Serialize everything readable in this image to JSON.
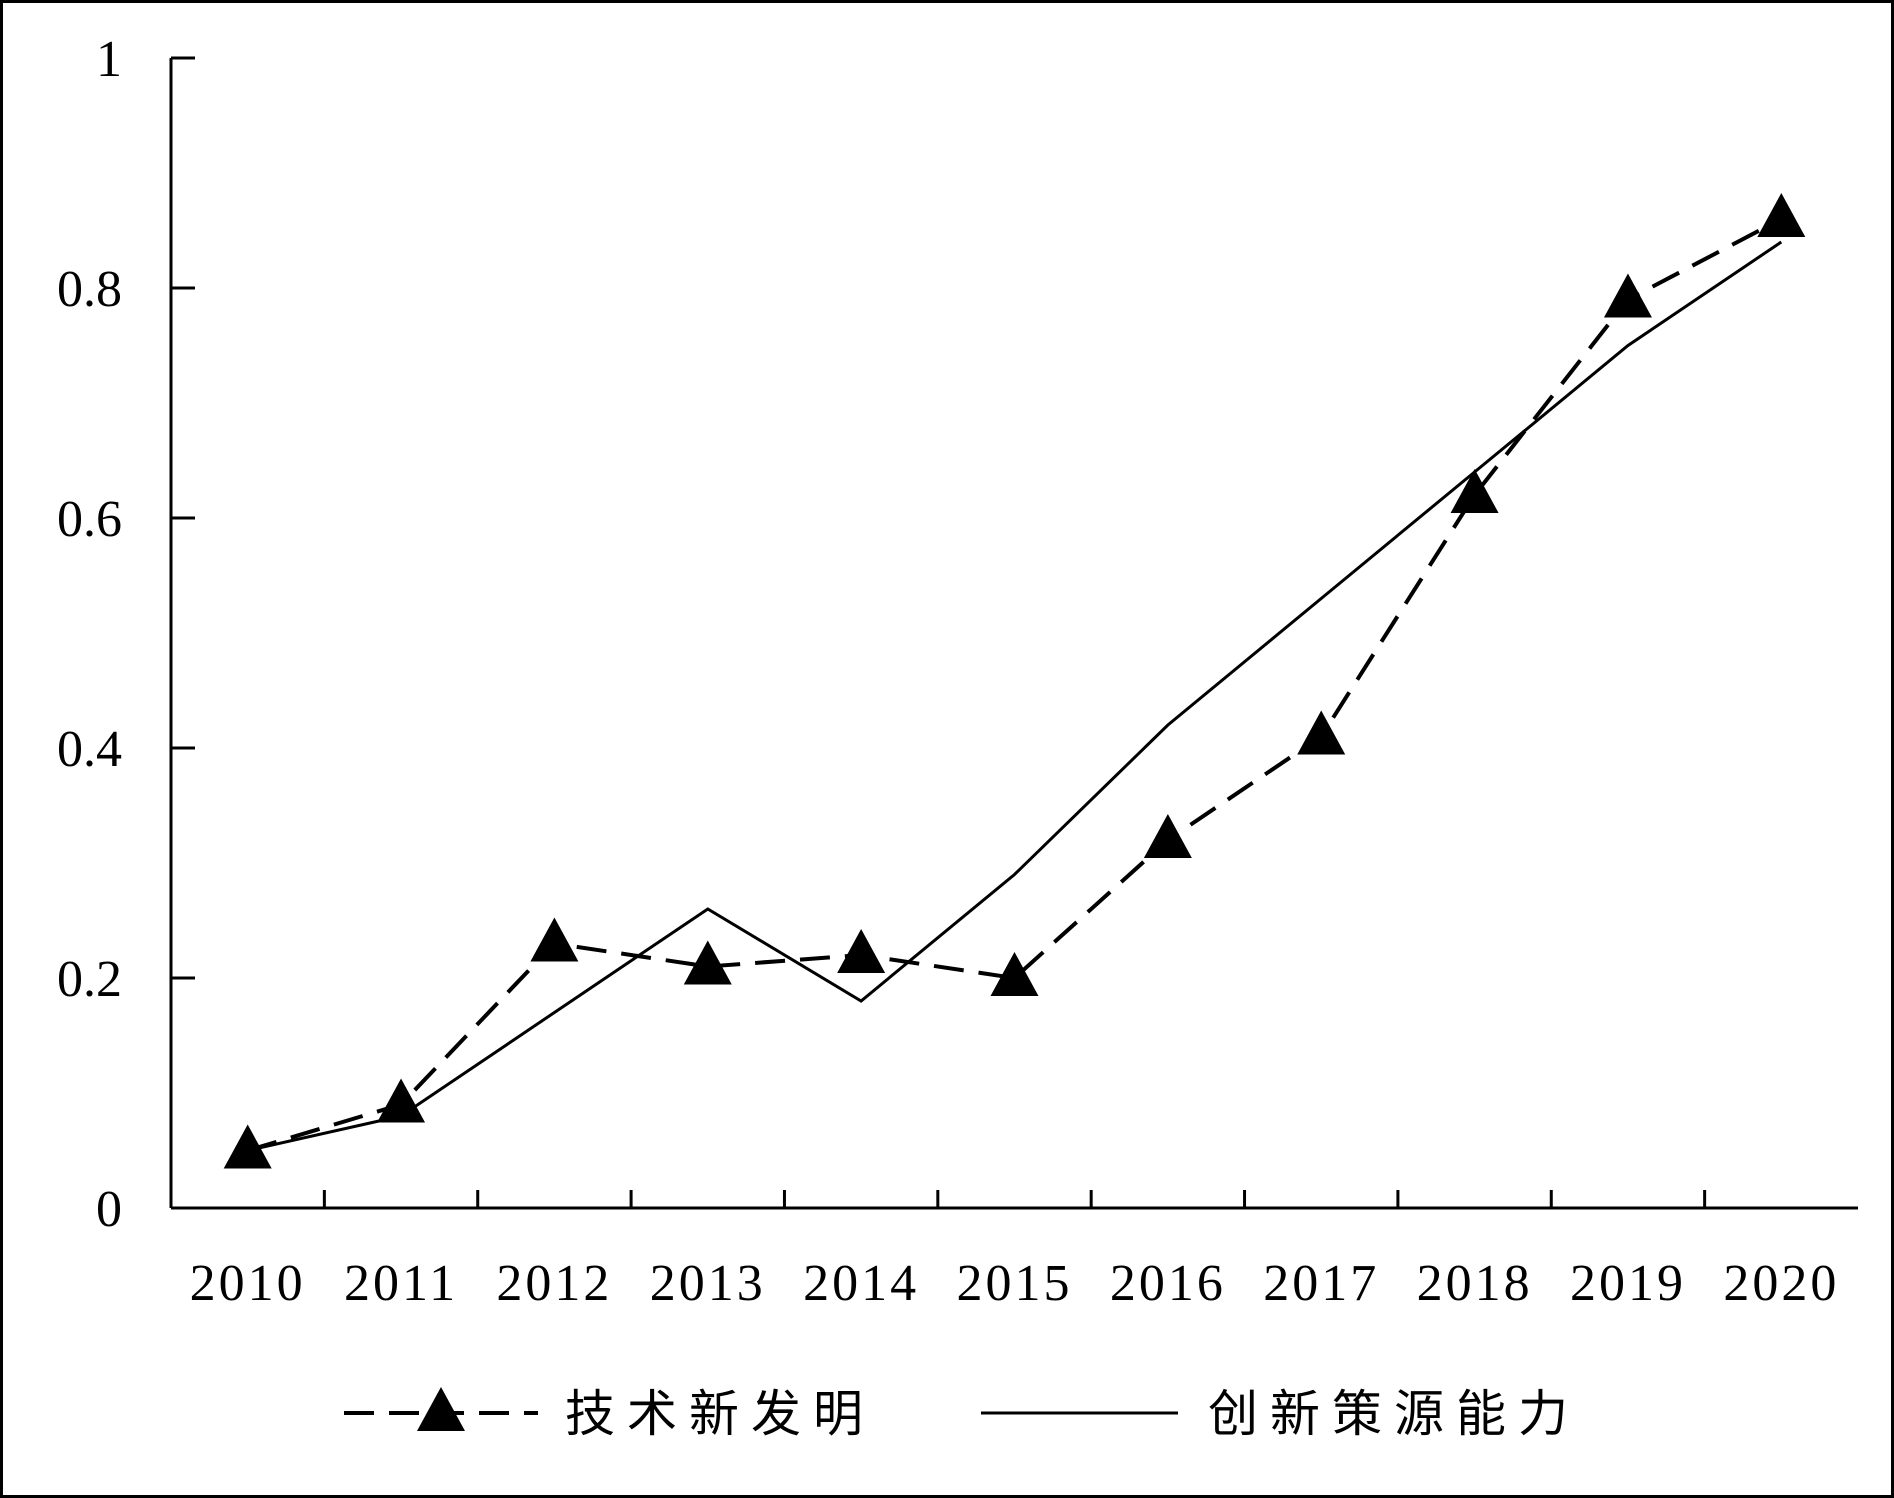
{
  "chart_data": {
    "type": "line",
    "categories": [
      "2010",
      "2011",
      "2012",
      "2013",
      "2014",
      "2015",
      "2016",
      "2017",
      "2018",
      "2019",
      "2020"
    ],
    "series": [
      {
        "name": "技术新发明",
        "values": [
          0.05,
          0.09,
          0.23,
          0.21,
          0.22,
          0.2,
          0.32,
          0.41,
          0.62,
          0.79,
          0.86
        ],
        "line_style": "dashed",
        "marker": "triangle",
        "color": "#000000"
      },
      {
        "name": "创新策源能力",
        "values": [
          0.05,
          0.08,
          0.17,
          0.26,
          0.18,
          0.29,
          0.42,
          0.53,
          0.64,
          0.75,
          0.84
        ],
        "line_style": "solid",
        "marker": "none",
        "color": "#000000"
      }
    ],
    "ylim": [
      0,
      1
    ],
    "yticks": [
      0,
      0.2,
      0.4,
      0.6,
      0.8,
      1
    ],
    "grid": false,
    "legend": "bottom"
  }
}
